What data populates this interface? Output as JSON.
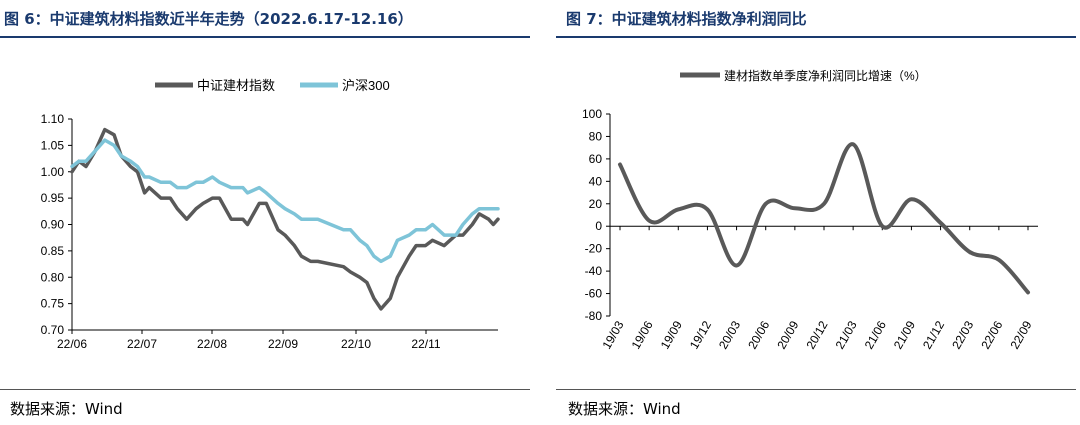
{
  "left": {
    "title": "图 6：中证建筑材料指数近半年走势（2022.6.17-12.16）",
    "source": "数据来源：Wind",
    "chart_data": {
      "type": "line",
      "x_ticks": [
        "22/06",
        "22/07",
        "22/08",
        "22/09",
        "22/10",
        "22/11"
      ],
      "ylim": [
        0.7,
        1.1
      ],
      "y_ticks": [
        "1.10",
        "1.05",
        "1.00",
        "0.95",
        "0.90",
        "0.85",
        "0.80",
        "0.75",
        "0.70"
      ],
      "legend_position": "top",
      "series": [
        {
          "name": "中证建材指数",
          "color": "#595959",
          "dates": [
            "2022-06-17",
            "2022-06-20",
            "2022-06-23",
            "2022-06-27",
            "2022-07-01",
            "2022-07-05",
            "2022-07-08",
            "2022-07-12",
            "2022-07-15",
            "2022-07-18",
            "2022-07-20",
            "2022-07-25",
            "2022-07-29",
            "2022-08-01",
            "2022-08-05",
            "2022-08-09",
            "2022-08-12",
            "2022-08-16",
            "2022-08-19",
            "2022-08-24",
            "2022-08-29",
            "2022-08-31",
            "2022-09-05",
            "2022-09-08",
            "2022-09-13",
            "2022-09-16",
            "2022-09-20",
            "2022-09-23",
            "2022-09-27",
            "2022-09-30",
            "2022-10-11",
            "2022-10-14",
            "2022-10-18",
            "2022-10-21",
            "2022-10-24",
            "2022-10-27",
            "2022-10-31",
            "2022-11-03",
            "2022-11-08",
            "2022-11-11",
            "2022-11-15",
            "2022-11-18",
            "2022-11-23",
            "2022-11-28",
            "2022-12-01",
            "2022-12-05",
            "2022-12-08",
            "2022-12-12",
            "2022-12-14",
            "2022-12-16"
          ],
          "values": [
            1.0,
            1.02,
            1.01,
            1.04,
            1.08,
            1.07,
            1.03,
            1.01,
            1.0,
            0.96,
            0.97,
            0.95,
            0.95,
            0.93,
            0.91,
            0.93,
            0.94,
            0.95,
            0.95,
            0.91,
            0.91,
            0.9,
            0.94,
            0.94,
            0.89,
            0.88,
            0.86,
            0.84,
            0.83,
            0.83,
            0.82,
            0.81,
            0.8,
            0.79,
            0.76,
            0.74,
            0.76,
            0.8,
            0.84,
            0.86,
            0.86,
            0.87,
            0.86,
            0.88,
            0.88,
            0.9,
            0.92,
            0.91,
            0.9,
            0.91
          ]
        },
        {
          "name": "沪深300",
          "color": "#7ec4d8",
          "dates": [
            "2022-06-17",
            "2022-06-20",
            "2022-06-23",
            "2022-06-27",
            "2022-07-01",
            "2022-07-05",
            "2022-07-08",
            "2022-07-12",
            "2022-07-15",
            "2022-07-18",
            "2022-07-20",
            "2022-07-25",
            "2022-07-29",
            "2022-08-01",
            "2022-08-05",
            "2022-08-09",
            "2022-08-12",
            "2022-08-16",
            "2022-08-19",
            "2022-08-24",
            "2022-08-29",
            "2022-08-31",
            "2022-09-05",
            "2022-09-08",
            "2022-09-13",
            "2022-09-16",
            "2022-09-20",
            "2022-09-23",
            "2022-09-27",
            "2022-09-30",
            "2022-10-11",
            "2022-10-14",
            "2022-10-18",
            "2022-10-21",
            "2022-10-24",
            "2022-10-27",
            "2022-10-31",
            "2022-11-03",
            "2022-11-08",
            "2022-11-11",
            "2022-11-15",
            "2022-11-18",
            "2022-11-23",
            "2022-11-28",
            "2022-12-01",
            "2022-12-05",
            "2022-12-08",
            "2022-12-12",
            "2022-12-14",
            "2022-12-16"
          ],
          "values": [
            1.01,
            1.02,
            1.02,
            1.04,
            1.06,
            1.05,
            1.03,
            1.02,
            1.01,
            0.99,
            0.99,
            0.98,
            0.98,
            0.97,
            0.97,
            0.98,
            0.98,
            0.99,
            0.98,
            0.97,
            0.97,
            0.96,
            0.97,
            0.96,
            0.94,
            0.93,
            0.92,
            0.91,
            0.91,
            0.91,
            0.89,
            0.89,
            0.87,
            0.86,
            0.84,
            0.83,
            0.84,
            0.87,
            0.88,
            0.89,
            0.89,
            0.9,
            0.88,
            0.88,
            0.9,
            0.92,
            0.93,
            0.93,
            0.93,
            0.93
          ]
        }
      ]
    }
  },
  "right": {
    "title": "图 7：中证建筑材料指数净利润同比",
    "source": "数据来源：Wind",
    "chart_data": {
      "type": "line",
      "categories": [
        "19/03",
        "19/06",
        "19/09",
        "19/12",
        "20/03",
        "20/06",
        "20/09",
        "20/12",
        "21/03",
        "21/06",
        "21/09",
        "21/12",
        "22/03",
        "22/06",
        "22/09"
      ],
      "series": [
        {
          "name": "建材指数单季度净利润同比增速（%）",
          "color": "#595959",
          "values": [
            55,
            5,
            15,
            15,
            -35,
            20,
            16,
            20,
            73,
            0,
            24,
            3,
            -23,
            -30,
            -59
          ]
        }
      ],
      "ylim": [
        -80,
        100
      ],
      "y_ticks": [
        "100",
        "80",
        "60",
        "40",
        "20",
        "0",
        "-20",
        "-40",
        "-60",
        "-80"
      ],
      "legend_position": "top"
    }
  }
}
